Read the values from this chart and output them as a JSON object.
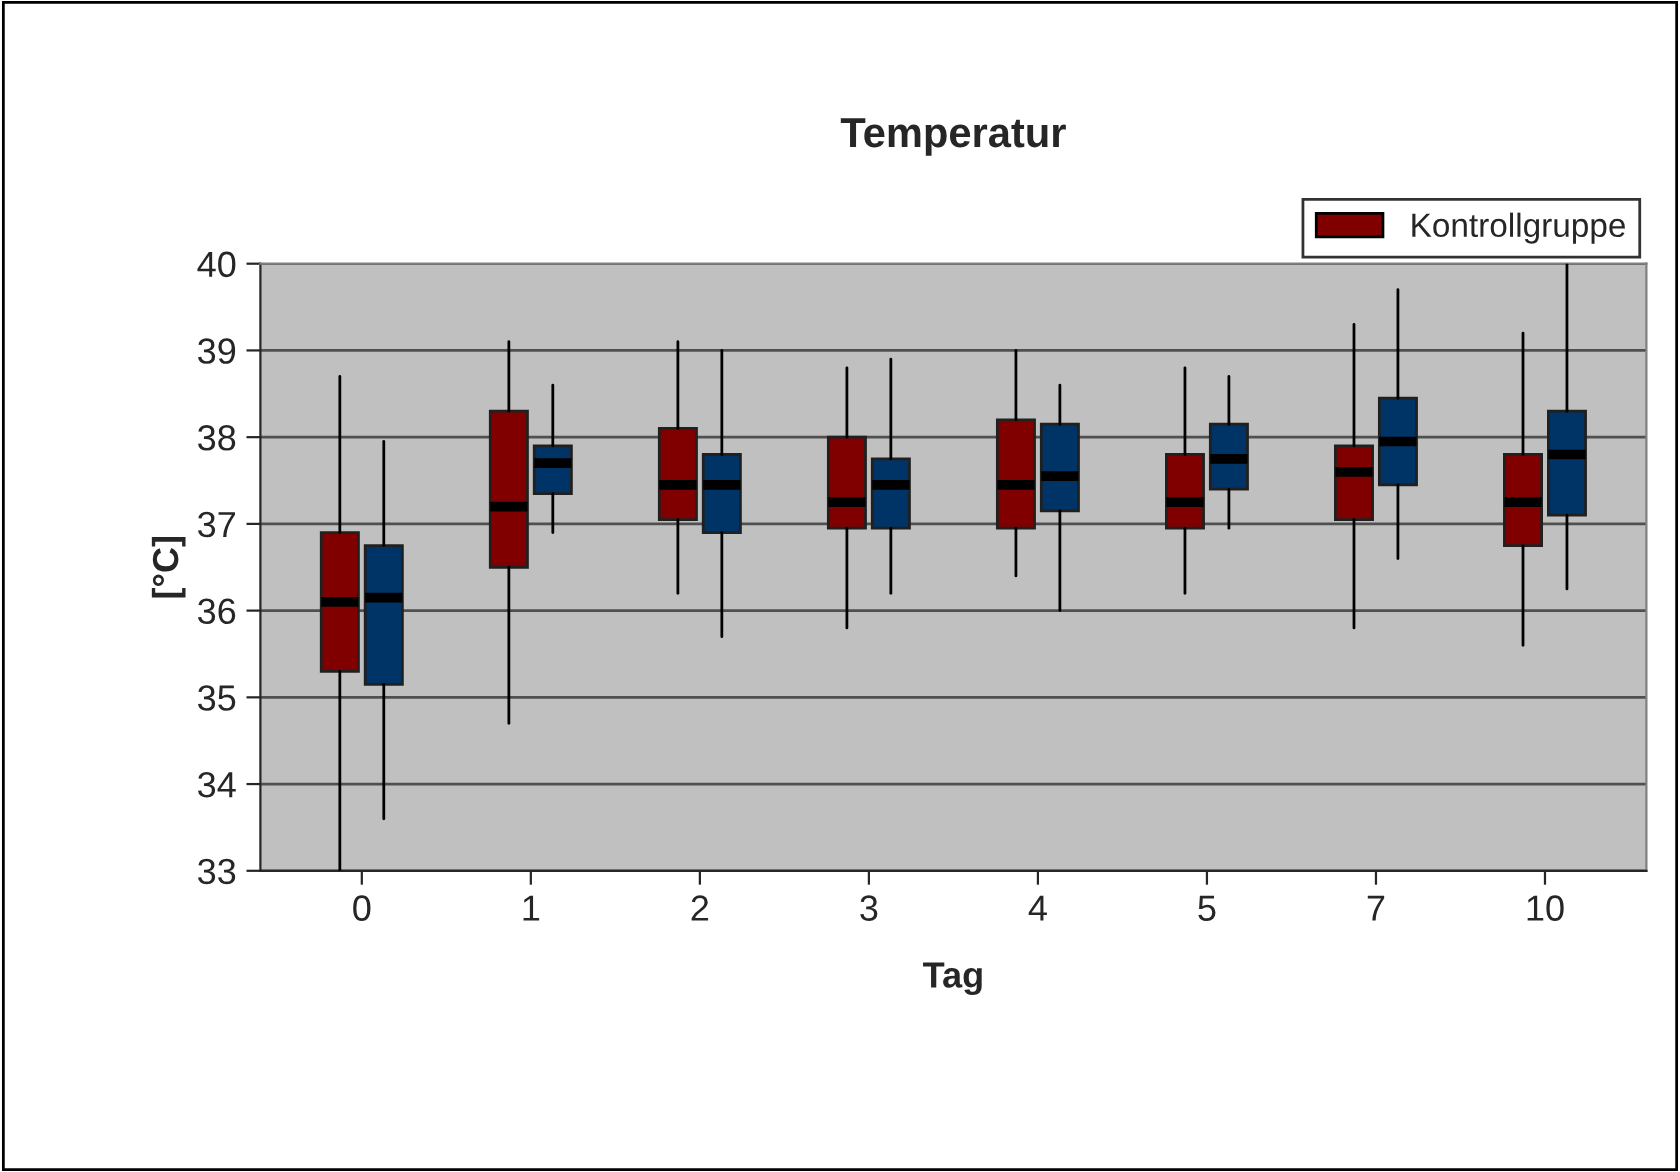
{
  "chart_data": {
    "type": "box",
    "title": "Temperatur",
    "xlabel": "Tag",
    "ylabel": "[°C]",
    "categories": [
      "0",
      "1",
      "2",
      "3",
      "4",
      "5",
      "7",
      "10"
    ],
    "ylim": [
      33,
      40
    ],
    "yticks": [
      33,
      34,
      35,
      36,
      37,
      38,
      39,
      40
    ],
    "grid": "y",
    "legend": "top right",
    "series": [
      {
        "name": "Kontrollgruppe",
        "color": "#800000",
        "boxes": [
          {
            "low": 33.0,
            "q1": 35.3,
            "median": 36.1,
            "q3": 36.9,
            "high": 38.7
          },
          {
            "low": 34.7,
            "q1": 36.5,
            "median": 37.2,
            "q3": 38.3,
            "high": 39.1
          },
          {
            "low": 36.2,
            "q1": 37.05,
            "median": 37.45,
            "q3": 38.1,
            "high": 39.1
          },
          {
            "low": 35.8,
            "q1": 36.95,
            "median": 37.25,
            "q3": 38.0,
            "high": 38.8
          },
          {
            "low": 36.4,
            "q1": 36.95,
            "median": 37.45,
            "q3": 38.2,
            "high": 39.0
          },
          {
            "low": 36.2,
            "q1": 36.95,
            "median": 37.25,
            "q3": 37.8,
            "high": 38.8
          },
          {
            "low": 35.8,
            "q1": 37.05,
            "median": 37.6,
            "q3": 37.9,
            "high": 39.3
          },
          {
            "low": 35.6,
            "q1": 36.75,
            "median": 37.25,
            "q3": 37.8,
            "high": 39.2
          }
        ]
      },
      {
        "color": "#003366",
        "boxes": [
          {
            "low": 33.6,
            "q1": 35.15,
            "median": 36.15,
            "q3": 36.75,
            "high": 37.95
          },
          {
            "low": 36.9,
            "q1": 37.35,
            "median": 37.7,
            "q3": 37.9,
            "high": 38.6
          },
          {
            "low": 35.7,
            "q1": 36.9,
            "median": 37.45,
            "q3": 37.8,
            "high": 39.0
          },
          {
            "low": 36.2,
            "q1": 36.95,
            "median": 37.45,
            "q3": 37.75,
            "high": 38.9
          },
          {
            "low": 36.0,
            "q1": 37.15,
            "median": 37.55,
            "q3": 38.15,
            "high": 38.6
          },
          {
            "low": 36.95,
            "q1": 37.4,
            "median": 37.75,
            "q3": 38.15,
            "high": 38.7
          },
          {
            "low": 36.6,
            "q1": 37.45,
            "median": 37.95,
            "q3": 38.45,
            "high": 39.7
          },
          {
            "low": 36.25,
            "q1": 37.1,
            "median": 37.8,
            "q3": 38.3,
            "high": 40.0
          }
        ]
      }
    ]
  }
}
